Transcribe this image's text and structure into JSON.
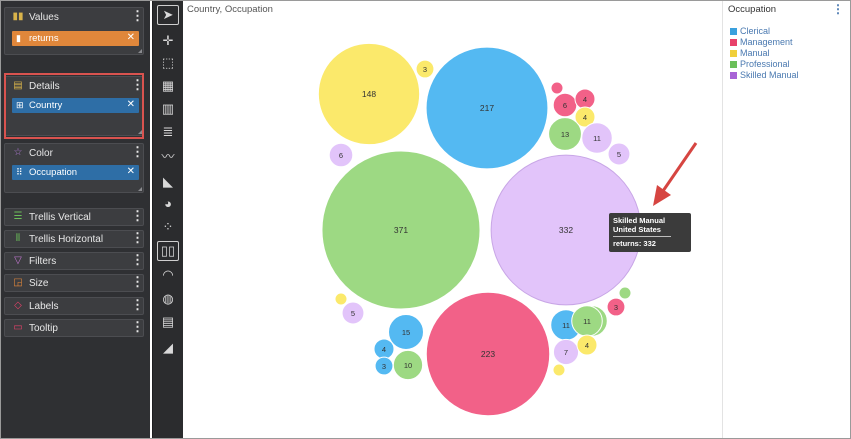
{
  "fields_panel": {
    "values": {
      "title": "Values",
      "chip": "returns"
    },
    "details": {
      "title": "Details",
      "chip": "Country"
    },
    "color": {
      "title": "Color",
      "chip": "Occupation"
    },
    "slim_wells": [
      "Trellis Vertical",
      "Trellis Horizontal",
      "Filters",
      "Size",
      "Labels",
      "Tooltip"
    ]
  },
  "toolbar": {
    "icons": [
      "select-pointer-icon",
      "move-icon",
      "lasso-icon",
      "table-icon",
      "bar-chart-icon",
      "bar-list-icon",
      "line-chart-icon",
      "area-chart-icon",
      "pie-chart-icon",
      "scatter-icon",
      "bubble-chart-icon",
      "gauge-icon",
      "map-globe-icon",
      "grid-icon",
      "stats-icon"
    ]
  },
  "chart": {
    "title": "Country, Occupation"
  },
  "tooltip": {
    "line1": "Skilled Manual",
    "line2": "United States",
    "line3": "returns:  332"
  },
  "legend": {
    "title": "Occupation",
    "items": [
      {
        "label": "Clerical",
        "color": "#3aa0dd"
      },
      {
        "label": "Management",
        "color": "#e8416a"
      },
      {
        "label": "Manual",
        "color": "#f0cf3a"
      },
      {
        "label": "Professional",
        "color": "#6bbf59"
      },
      {
        "label": "Skilled Manual",
        "color": "#a863d6"
      }
    ]
  },
  "chart_data": {
    "type": "bubble",
    "title": "Country, Occupation",
    "size_measure": "returns",
    "color_by": "Occupation",
    "colors": {
      "Clerical": "#54b9f2",
      "Management": "#f26188",
      "Manual": "#fbe96b",
      "Professional": "#9dd983",
      "Skilled Manual": "#e2c4fa"
    },
    "bubbles": [
      {
        "occupation": "Manual",
        "value": 148
      },
      {
        "occupation": "Manual",
        "value": 3
      },
      {
        "occupation": "Clerical",
        "value": 217
      },
      {
        "occupation": "Skilled Manual",
        "value": 6
      },
      {
        "occupation": "Professional",
        "value": 371
      },
      {
        "occupation": "Skilled Manual",
        "value": 332,
        "country": "United States"
      },
      {
        "occupation": "Management",
        "value": 223
      },
      {
        "occupation": "Management",
        "value": 6
      },
      {
        "occupation": "Management",
        "value": 4
      },
      {
        "occupation": "Manual",
        "value": 4
      },
      {
        "occupation": "Professional",
        "value": 13
      },
      {
        "occupation": "Skilled Manual",
        "value": 11
      },
      {
        "occupation": "Skilled Manual",
        "value": 5
      },
      {
        "occupation": "Management",
        "value": null
      },
      {
        "occupation": "Skilled Manual",
        "value": 5
      },
      {
        "occupation": "Professional",
        "value": 11
      },
      {
        "occupation": "Clerical",
        "value": 15
      },
      {
        "occupation": "Clerical",
        "value": 4
      },
      {
        "occupation": "Clerical",
        "value": 3
      },
      {
        "occupation": "Professional",
        "value": 10
      },
      {
        "occupation": "Manual",
        "value": null
      },
      {
        "occupation": "Clerical",
        "value": 11
      },
      {
        "occupation": "Professional",
        "value": 11
      },
      {
        "occupation": "Management",
        "value": 3
      },
      {
        "occupation": "Skilled Manual",
        "value": 7
      },
      {
        "occupation": "Manual",
        "value": 4
      },
      {
        "occupation": "Manual",
        "value": null
      },
      {
        "occupation": "Professional",
        "value": null
      }
    ]
  }
}
